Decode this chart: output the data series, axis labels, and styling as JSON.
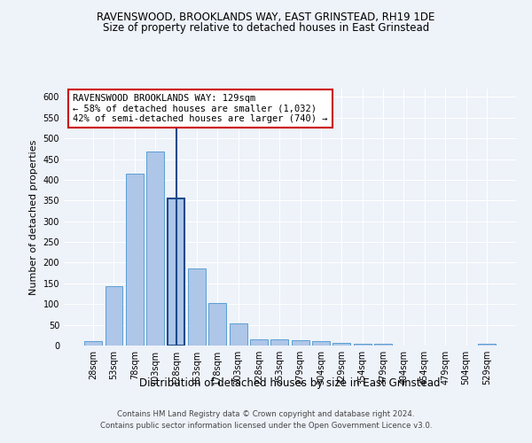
{
  "title": "RAVENSWOOD, BROOKLANDS WAY, EAST GRINSTEAD, RH19 1DE",
  "subtitle": "Size of property relative to detached houses in East Grinstead",
  "xlabel": "Distribution of detached houses by size in East Grinstead",
  "ylabel": "Number of detached properties",
  "footnote1": "Contains HM Land Registry data © Crown copyright and database right 2024.",
  "footnote2": "Contains public sector information licensed under the Open Government Licence v3.0.",
  "bar_labels": [
    "28sqm",
    "53sqm",
    "78sqm",
    "103sqm",
    "128sqm",
    "153sqm",
    "178sqm",
    "203sqm",
    "228sqm",
    "253sqm",
    "279sqm",
    "304sqm",
    "329sqm",
    "354sqm",
    "379sqm",
    "404sqm",
    "454sqm",
    "479sqm",
    "504sqm",
    "529sqm"
  ],
  "bar_values": [
    10,
    143,
    415,
    468,
    355,
    185,
    102,
    54,
    16,
    15,
    12,
    10,
    6,
    5,
    5,
    0,
    0,
    0,
    0,
    5
  ],
  "bar_color": "#aec6e8",
  "bar_edge_color": "#5a9fd4",
  "highlight_bar_index": 4,
  "highlight_bar_edge_color": "#1a4a8a",
  "highlight_line_color": "#1a4a8a",
  "ylim": [
    0,
    620
  ],
  "yticks": [
    0,
    50,
    100,
    150,
    200,
    250,
    300,
    350,
    400,
    450,
    500,
    550,
    600
  ],
  "annotation_text": "RAVENSWOOD BROOKLANDS WAY: 129sqm\n← 58% of detached houses are smaller (1,032)\n42% of semi-detached houses are larger (740) →",
  "annotation_box_color": "#ffffff",
  "annotation_box_edge_color": "#cc0000",
  "background_color": "#eef2f9",
  "grid_color": "#ffffff",
  "title_fontsize": 8.5,
  "subtitle_fontsize": 8.5,
  "axis_label_fontsize": 8,
  "tick_fontsize": 7,
  "annotation_fontsize": 7.5,
  "footnote_fontsize": 6.2
}
